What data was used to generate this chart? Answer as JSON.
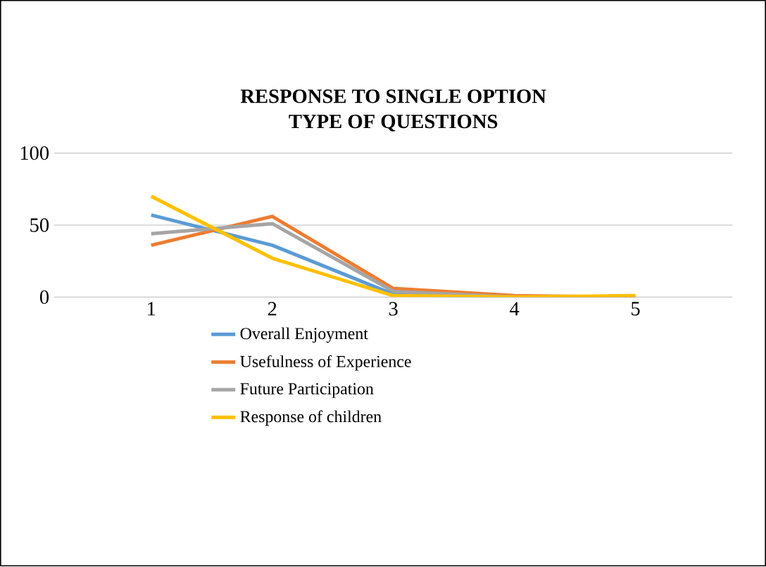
{
  "chart_data": {
    "type": "line",
    "title": "RESPONSE TO SINGLE OPTION TYPE OF QUESTIONS",
    "categories": [
      "1",
      "2",
      "3",
      "4",
      "5"
    ],
    "series": [
      {
        "name": "Overall Enjoyment",
        "color": "#5b9bd5",
        "values": [
          57,
          36,
          2,
          0,
          0
        ]
      },
      {
        "name": "Usefulness of Experience",
        "color": "#ed7d31",
        "values": [
          36,
          56,
          6,
          1,
          0
        ]
      },
      {
        "name": "Future Participation",
        "color": "#a5a5a5",
        "values": [
          44,
          51,
          4,
          0,
          0
        ]
      },
      {
        "name": "Response of children",
        "color": "#ffc000",
        "values": [
          70,
          27,
          1,
          0,
          1
        ]
      }
    ],
    "ylim": [
      0,
      100
    ],
    "yticks": [
      0,
      50,
      100
    ],
    "grid": "y",
    "legend": "bottom",
    "marker": "none",
    "line_style": "solid"
  }
}
